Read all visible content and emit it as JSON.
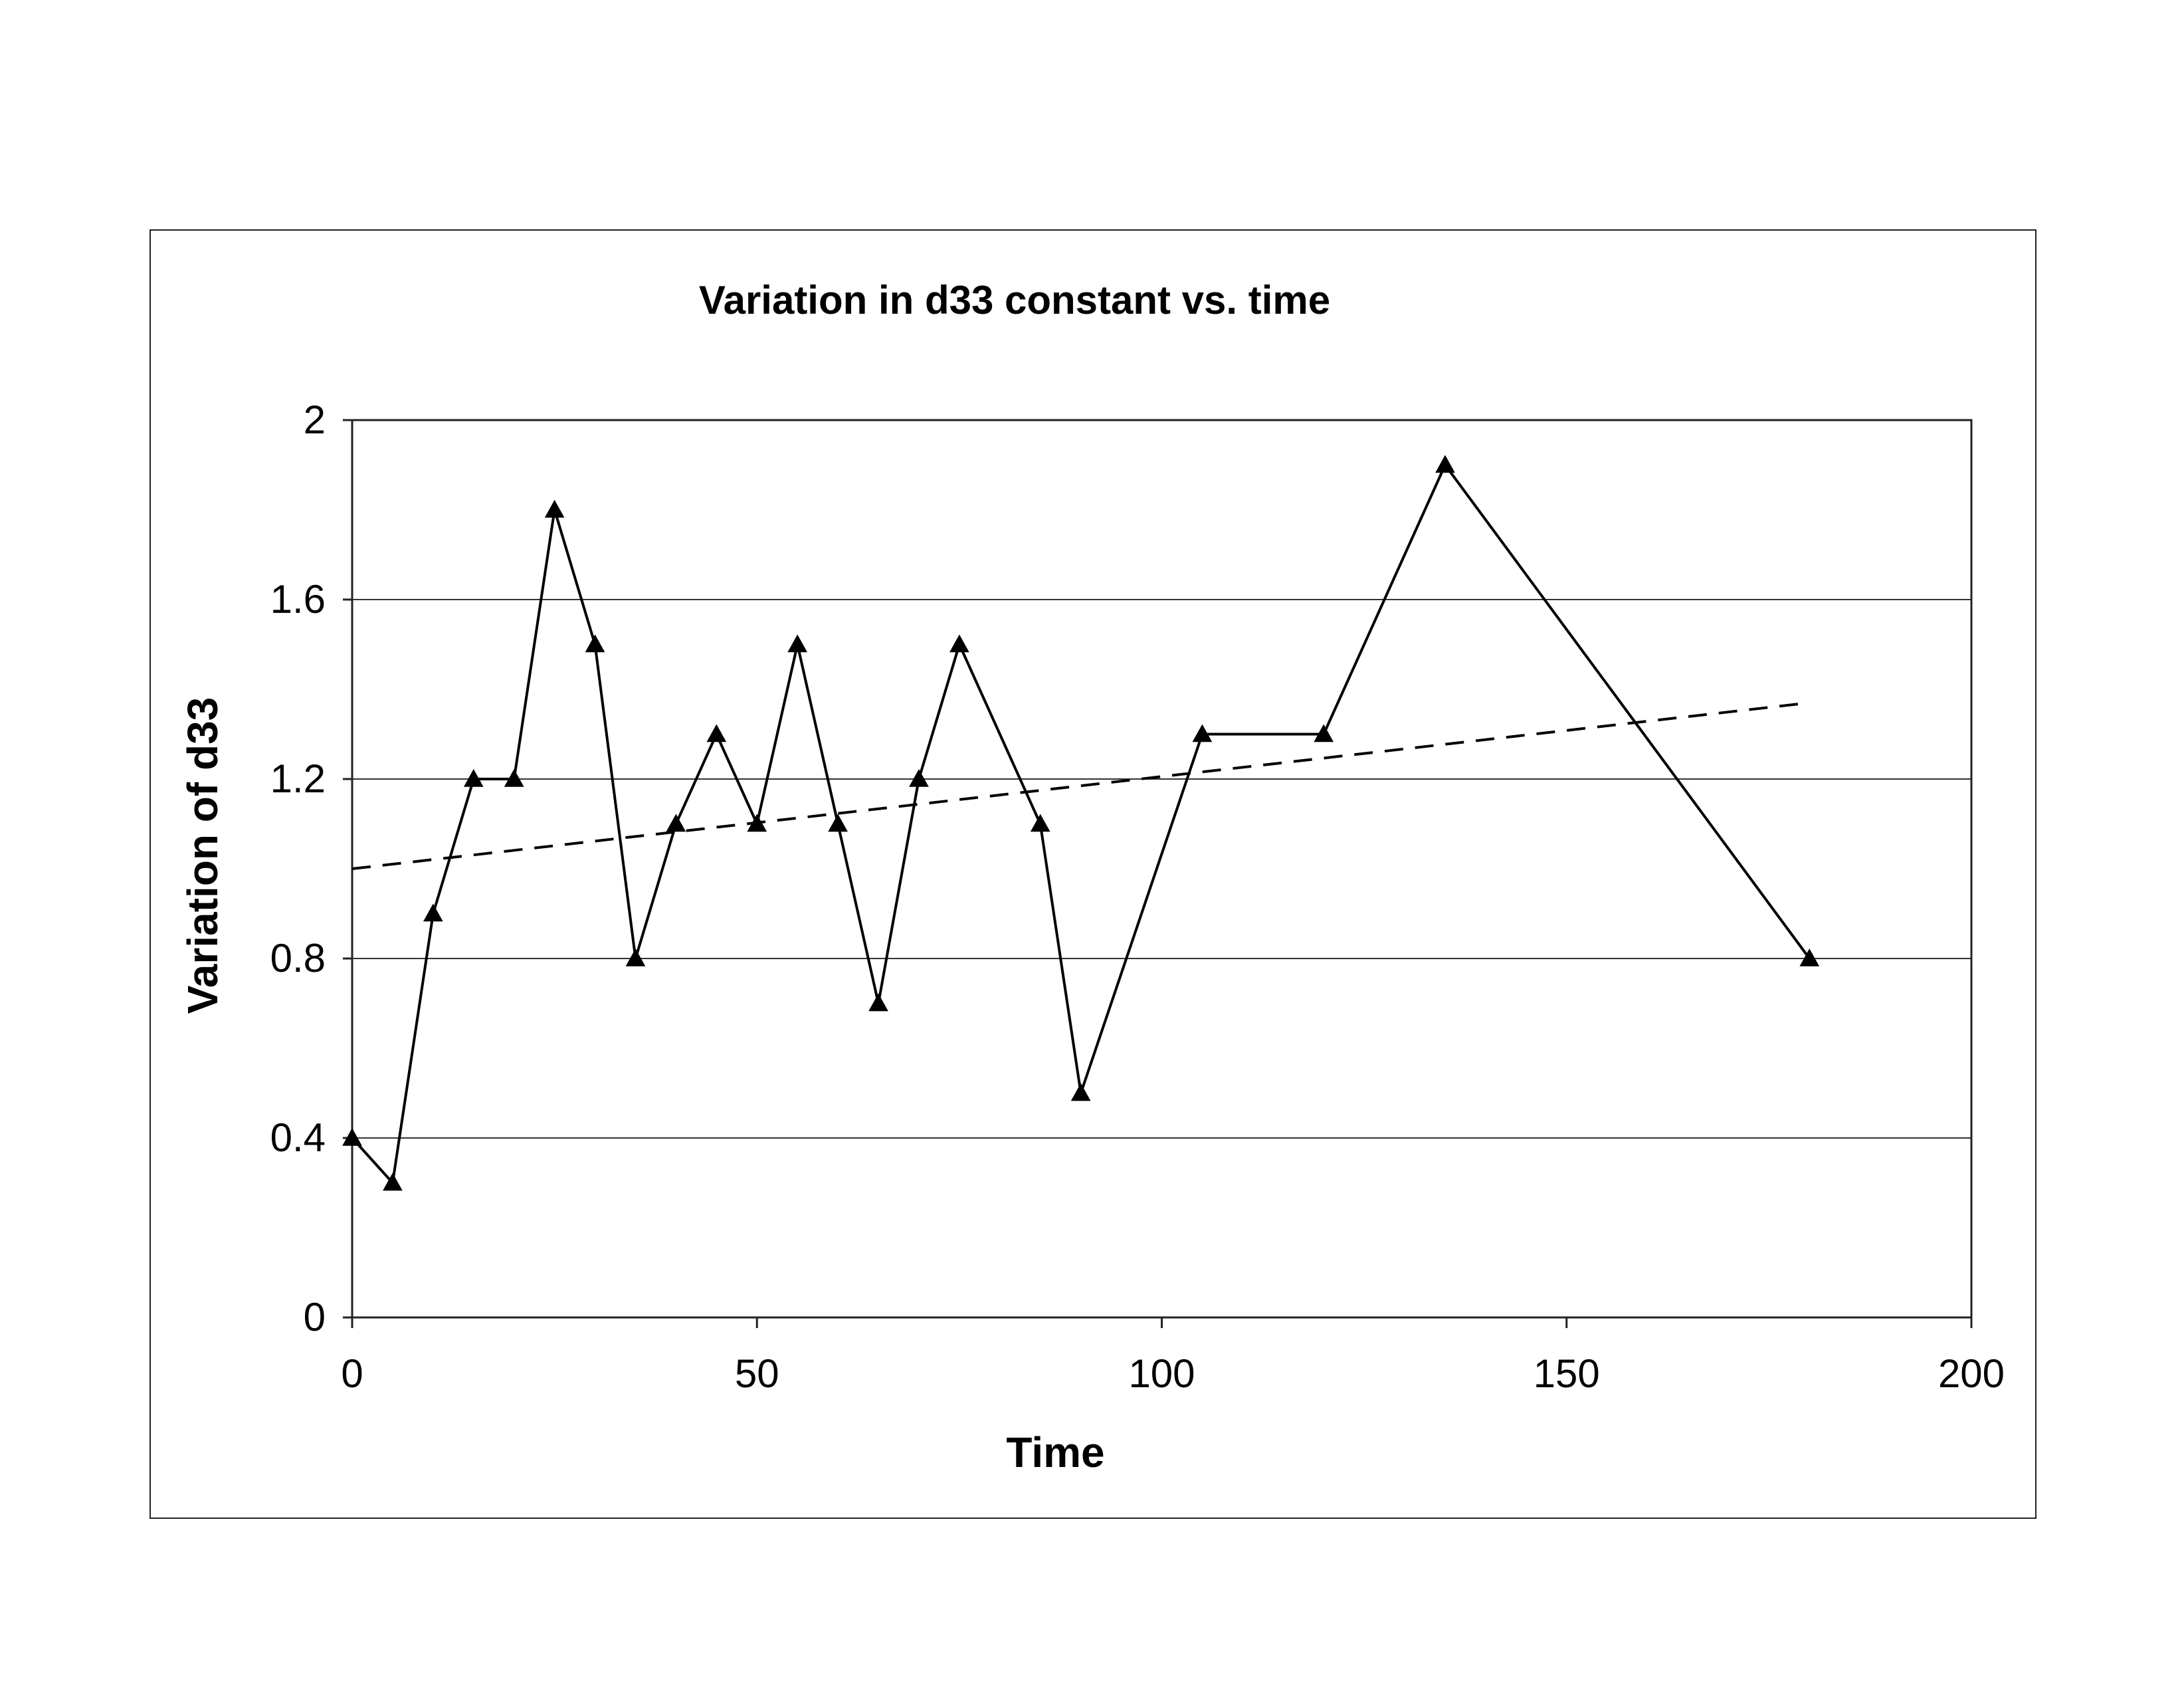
{
  "chart_data": {
    "type": "line",
    "title": "Variation in d33 constant vs. time",
    "xlabel": "Time",
    "ylabel": "Variation of d33",
    "xlim": [
      0,
      200
    ],
    "ylim": [
      0,
      2
    ],
    "xticks": [
      "0",
      "50",
      "100",
      "150",
      "200"
    ],
    "yticks": [
      "0",
      "0.4",
      "0.8",
      "1.2",
      "1.6",
      "2"
    ],
    "grid": "horizontal major gridlines",
    "legend": "none",
    "series": [
      {
        "marker": "triangle",
        "line_style": "solid",
        "color": "#000000",
        "x": [
          0,
          5,
          10,
          15,
          20,
          25,
          30,
          35,
          40,
          45,
          50,
          55,
          60,
          65,
          70,
          75,
          85,
          90,
          105,
          120,
          135,
          180
        ],
        "y": [
          0.4,
          0.3,
          0.9,
          1.2,
          1.2,
          1.8,
          1.5,
          0.8,
          1.1,
          1.3,
          1.1,
          1.5,
          1.1,
          0.7,
          1.2,
          1.5,
          1.1,
          0.5,
          1.3,
          1.3,
          1.9,
          0.8
        ]
      }
    ],
    "trendline": {
      "style": "dashed",
      "color": "#000000",
      "x": [
        0,
        180
      ],
      "y": [
        1.0,
        1.37
      ]
    }
  }
}
